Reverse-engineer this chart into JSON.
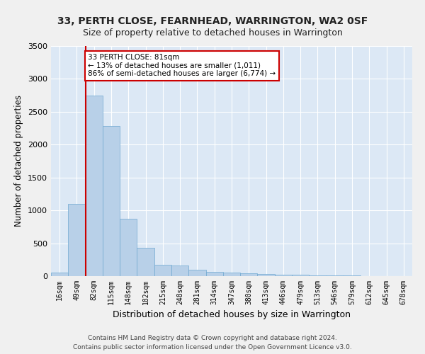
{
  "title": "33, PERTH CLOSE, FEARNHEAD, WARRINGTON, WA2 0SF",
  "subtitle": "Size of property relative to detached houses in Warrington",
  "xlabel": "Distribution of detached houses by size in Warrington",
  "ylabel": "Number of detached properties",
  "categories": [
    "16sqm",
    "49sqm",
    "82sqm",
    "115sqm",
    "148sqm",
    "182sqm",
    "215sqm",
    "248sqm",
    "281sqm",
    "314sqm",
    "347sqm",
    "380sqm",
    "413sqm",
    "446sqm",
    "479sqm",
    "513sqm",
    "546sqm",
    "579sqm",
    "612sqm",
    "645sqm",
    "678sqm"
  ],
  "values": [
    55,
    1100,
    2750,
    2280,
    875,
    430,
    170,
    165,
    95,
    65,
    55,
    45,
    30,
    25,
    20,
    15,
    10,
    8,
    5,
    4,
    3
  ],
  "bar_color": "#b8d0e8",
  "bar_edge_color": "#6fa8d0",
  "annotation_label": "33 PERTH CLOSE: 81sqm",
  "annotation_line1": "← 13% of detached houses are smaller (1,011)",
  "annotation_line2": "86% of semi-detached houses are larger (6,774) →",
  "annotation_box_color": "#ffffff",
  "annotation_box_edge": "#cc0000",
  "vline_color": "#cc0000",
  "vline_x_index": 2,
  "ylim": [
    0,
    3500
  ],
  "yticks": [
    0,
    500,
    1000,
    1500,
    2000,
    2500,
    3000,
    3500
  ],
  "background_color": "#dce8f5",
  "grid_color": "#ffffff",
  "footer_line1": "Contains HM Land Registry data © Crown copyright and database right 2024.",
  "footer_line2": "Contains public sector information licensed under the Open Government Licence v3.0.",
  "title_fontsize": 10,
  "subtitle_fontsize": 9,
  "ylabel_fontsize": 8.5,
  "xlabel_fontsize": 9,
  "tick_fontsize": 7,
  "footer_fontsize": 6.5
}
